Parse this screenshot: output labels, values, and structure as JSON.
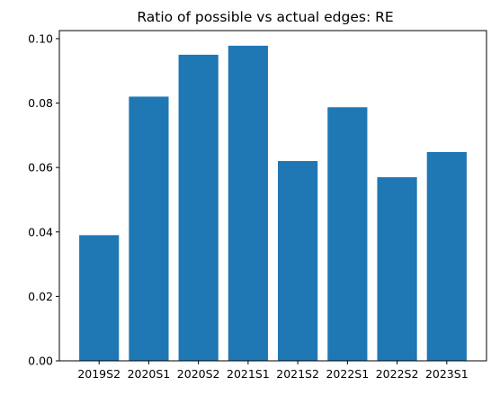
{
  "chart_data": {
    "type": "bar",
    "title": "Ratio of possible vs actual edges: RE",
    "xlabel": "",
    "ylabel": "",
    "categories": [
      "2019S2",
      "2020S1",
      "2020S2",
      "2021S1",
      "2021S2",
      "2022S1",
      "2022S2",
      "2023S1"
    ],
    "values": [
      0.039,
      0.082,
      0.095,
      0.0978,
      0.062,
      0.0787,
      0.057,
      0.0648
    ],
    "ylim": [
      0,
      0.1025
    ],
    "yticks": [
      0.0,
      0.02,
      0.04,
      0.06,
      0.08,
      0.1
    ],
    "ytick_labels": [
      "0.00",
      "0.02",
      "0.04",
      "0.06",
      "0.08",
      "0.10"
    ],
    "grid": false,
    "legend": "none",
    "bar_color": "#1f77b4"
  }
}
